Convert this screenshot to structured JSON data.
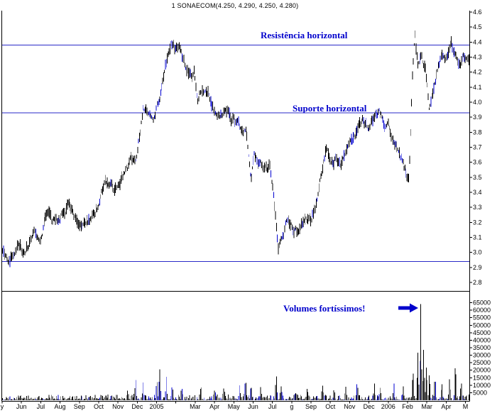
{
  "chart_data": {
    "type": "candlestick",
    "title": "1 SONAECOM(4.250, 4.290, 4.250, 4.280)",
    "instrument": "SONAECOM",
    "quote_ohlc": [
      4.25,
      4.29,
      4.25,
      4.28
    ],
    "annotations": {
      "resistance": "Resistência horizontal",
      "support": "Suporte horizontal",
      "volumes": "Volumes fortíssimos!"
    },
    "price_axis": {
      "side": "right",
      "ticks": [
        "4.6",
        "4.5",
        "4.4",
        "4.3",
        "4.2",
        "4.1",
        "4.0",
        "3.9",
        "3.8",
        "3.7",
        "3.6",
        "3.5",
        "3.4",
        "3.3",
        "3.2",
        "3.1",
        "3.0",
        "2.9",
        "2.8"
      ],
      "range": [
        2.75,
        4.65
      ]
    },
    "volume_axis": {
      "side": "right",
      "ticks": [
        "65000",
        "60000",
        "55000",
        "50000",
        "45000",
        "40000",
        "35000",
        "30000",
        "25000",
        "20000",
        "15000",
        "10000",
        "5000"
      ],
      "range": [
        0,
        67000
      ]
    },
    "x_axis": {
      "labels": [
        {
          "label": "y",
          "m": 0
        },
        {
          "label": "Jun",
          "m": 1
        },
        {
          "label": "Jul",
          "m": 2
        },
        {
          "label": "Aug",
          "m": 3
        },
        {
          "label": "Sep",
          "m": 4
        },
        {
          "label": "Oct",
          "m": 5
        },
        {
          "label": "Nov",
          "m": 6
        },
        {
          "label": "Dec",
          "m": 7
        },
        {
          "label": "2005",
          "m": 8
        },
        {
          "label": "Mar",
          "m": 10
        },
        {
          "label": "Apr",
          "m": 11
        },
        {
          "label": "May",
          "m": 12
        },
        {
          "label": "Jun",
          "m": 13
        },
        {
          "label": "Jul",
          "m": 14
        },
        {
          "label": "g",
          "m": 15
        },
        {
          "label": "Sep",
          "m": 16
        },
        {
          "label": "Oct",
          "m": 17
        },
        {
          "label": "Nov",
          "m": 18
        },
        {
          "label": "Dec",
          "m": 19
        },
        {
          "label": "2006",
          "m": 20
        },
        {
          "label": "Feb",
          "m": 21
        },
        {
          "label": "Mar",
          "m": 22
        },
        {
          "label": "Apr",
          "m": 23
        },
        {
          "label": "M",
          "m": 24
        }
      ]
    },
    "horizontal_lines": [
      {
        "name": "resistance",
        "value": 4.38
      },
      {
        "name": "support",
        "value": 3.93
      },
      {
        "name": "lower-support",
        "value": 2.94
      }
    ],
    "grid": false,
    "legend": false,
    "months_total": 24.2,
    "bars": 505,
    "price_path": [
      [
        0,
        3.02
      ],
      [
        0.4,
        2.97
      ],
      [
        0.8,
        3.06
      ],
      [
        1.2,
        3.02
      ],
      [
        1.6,
        3.1
      ],
      [
        2,
        3.12
      ],
      [
        2.3,
        3.27
      ],
      [
        2.6,
        3.17
      ],
      [
        3,
        3.22
      ],
      [
        3.4,
        3.3
      ],
      [
        3.8,
        3.2
      ],
      [
        4.2,
        3.18
      ],
      [
        4.6,
        3.26
      ],
      [
        5,
        3.34
      ],
      [
        5.4,
        3.45
      ],
      [
        5.8,
        3.4
      ],
      [
        6.2,
        3.5
      ],
      [
        6.6,
        3.58
      ],
      [
        6.9,
        3.62
      ],
      [
        7.1,
        3.8
      ],
      [
        7.3,
        3.95
      ],
      [
        7.6,
        3.92
      ],
      [
        7.8,
        3.84
      ],
      [
        8,
        3.96
      ],
      [
        8.2,
        4.05
      ],
      [
        8.5,
        4.25
      ],
      [
        8.75,
        4.42
      ],
      [
        8.95,
        4.35
      ],
      [
        9.15,
        4.38
      ],
      [
        9.4,
        4.25
      ],
      [
        9.7,
        4.18
      ],
      [
        9.95,
        4.22
      ],
      [
        10.15,
        4
      ],
      [
        10.35,
        4.1
      ],
      [
        10.7,
        4.04
      ],
      [
        11,
        3.96
      ],
      [
        11.3,
        3.88
      ],
      [
        11.6,
        3.93
      ],
      [
        12,
        3.86
      ],
      [
        12.4,
        3.8
      ],
      [
        12.65,
        3.82
      ],
      [
        12.8,
        3.62
      ],
      [
        12.9,
        3.45
      ],
      [
        13.05,
        3.62
      ],
      [
        13.3,
        3.58
      ],
      [
        13.6,
        3.52
      ],
      [
        13.85,
        3.55
      ],
      [
        14,
        3.45
      ],
      [
        14.15,
        3.22
      ],
      [
        14.3,
        2.98
      ],
      [
        14.5,
        3.06
      ],
      [
        14.75,
        3.18
      ],
      [
        15,
        3.14
      ],
      [
        15.4,
        3.12
      ],
      [
        15.7,
        3.22
      ],
      [
        16,
        3.2
      ],
      [
        16.3,
        3.34
      ],
      [
        16.6,
        3.55
      ],
      [
        16.8,
        3.66
      ],
      [
        17,
        3.57
      ],
      [
        17.3,
        3.64
      ],
      [
        17.6,
        3.59
      ],
      [
        18,
        3.7
      ],
      [
        18.4,
        3.8
      ],
      [
        18.7,
        3.87
      ],
      [
        19,
        3.82
      ],
      [
        19.3,
        3.93
      ],
      [
        19.55,
        3.95
      ],
      [
        19.8,
        3.86
      ],
      [
        20,
        3.89
      ],
      [
        20.3,
        3.76
      ],
      [
        20.6,
        3.66
      ],
      [
        20.9,
        3.54
      ],
      [
        21.1,
        3.5
      ],
      [
        21.25,
        4.1
      ],
      [
        21.4,
        4.48
      ],
      [
        21.55,
        4.25
      ],
      [
        21.75,
        4.32
      ],
      [
        21.95,
        4.2
      ],
      [
        22.15,
        3.92
      ],
      [
        22.45,
        4.12
      ],
      [
        22.75,
        4.3
      ],
      [
        23,
        4.26
      ],
      [
        23.3,
        4.36
      ],
      [
        23.6,
        4.23
      ],
      [
        23.9,
        4.31
      ],
      [
        24.2,
        4.28
      ]
    ],
    "volume_spikes": [
      [
        6.5,
        6000
      ],
      [
        6.9,
        12000
      ],
      [
        7.3,
        9000
      ],
      [
        8,
        14000
      ],
      [
        8.15,
        20000
      ],
      [
        8.5,
        12000
      ],
      [
        8.8,
        9000
      ],
      [
        9.3,
        8000
      ],
      [
        10.3,
        9500
      ],
      [
        11,
        6000
      ],
      [
        11.5,
        7000
      ],
      [
        12.3,
        8000
      ],
      [
        12.6,
        12000
      ],
      [
        12.9,
        9000
      ],
      [
        13.4,
        7000
      ],
      [
        14.2,
        17000
      ],
      [
        14.45,
        9000
      ],
      [
        15.2,
        5000
      ],
      [
        15.8,
        6000
      ],
      [
        16.6,
        9000
      ],
      [
        17.2,
        6500
      ],
      [
        17.8,
        7000
      ],
      [
        18.4,
        10000
      ],
      [
        19.3,
        11000
      ],
      [
        19.6,
        8500
      ],
      [
        20.3,
        8000
      ],
      [
        20.8,
        6000
      ],
      [
        21.3,
        20000
      ],
      [
        21.55,
        30000
      ],
      [
        21.7,
        64000
      ],
      [
        21.85,
        33000
      ],
      [
        22,
        22000
      ],
      [
        22.15,
        18000
      ],
      [
        22.45,
        12000
      ],
      [
        22.8,
        10000
      ],
      [
        23.2,
        14000
      ],
      [
        23.5,
        24000
      ],
      [
        23.8,
        12000
      ]
    ]
  },
  "colors": {
    "annotation_blue": "#0000cc",
    "line_blue": "#2a2ac8",
    "bar_black": "#000000",
    "bar_blue": "#0000d0",
    "axis_black": "#000000",
    "background": "#ffffff"
  }
}
